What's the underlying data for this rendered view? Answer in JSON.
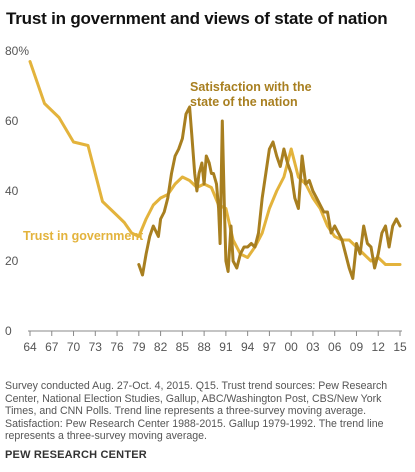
{
  "title": "Trust in government  and views of state of nation",
  "notes": [
    "Survey conducted Aug. 27-Oct. 4, 2015. Q15. Trust trend sources: Pew Research Center, National Election Studies, Gallup, ABC/Washington Post, CBS/New York Times, and CNN Polls. Trend line represents a three-survey moving average.",
    "Satisfaction: Pew Research Center 1988-2015. Gallup 1979-1992. The trend line represents a three-survey moving average."
  ],
  "source": "PEW RESEARCH CENTER",
  "colors": {
    "trust": "#E3B33C",
    "satisfaction": "#A87F20",
    "axis": "#888888"
  },
  "chart_data": {
    "type": "line",
    "title": "Trust in government  and views of state of nation",
    "xlim": [
      1964,
      2015
    ],
    "ylim": [
      0,
      80
    ],
    "x_ticks": [
      1964,
      1967,
      1970,
      1973,
      1976,
      1979,
      1982,
      1985,
      1988,
      1991,
      1994,
      1997,
      2000,
      2003,
      2006,
      2009,
      2012,
      2015
    ],
    "x_tick_labels": [
      "64",
      "67",
      "70",
      "73",
      "76",
      "79",
      "82",
      "85",
      "88",
      "91",
      "94",
      "97",
      "00",
      "03",
      "06",
      "09",
      "12",
      "15"
    ],
    "y_ticks": [
      0,
      20,
      40,
      60,
      80
    ],
    "y_tick_labels": [
      "0",
      "20",
      "40",
      "60",
      "80%"
    ],
    "grid": false,
    "series": [
      {
        "name": "Trust in government",
        "color": "#E3B33C",
        "x": [
          1964,
          1966,
          1968,
          1970,
          1972,
          1974,
          1975,
          1976,
          1977,
          1978,
          1979,
          1980,
          1981,
          1982,
          1983,
          1984,
          1985,
          1986,
          1987,
          1988,
          1989,
          1990,
          1991,
          1992,
          1993,
          1994,
          1995,
          1996,
          1997,
          1998,
          1999,
          2000,
          2001,
          2002,
          2003,
          2004,
          2005,
          2006,
          2007,
          2008,
          2009,
          2010,
          2011,
          2012,
          2013,
          2014,
          2015
        ],
        "y": [
          77,
          65,
          61,
          54,
          53,
          37,
          35,
          33,
          31,
          28,
          27,
          32,
          36,
          38,
          39,
          42,
          44,
          43,
          41,
          42,
          41,
          36,
          35,
          26,
          22,
          21,
          24,
          28,
          35,
          40,
          44,
          52,
          44,
          42,
          38,
          35,
          30,
          27,
          26,
          26,
          24,
          22,
          20,
          21,
          19,
          19,
          19
        ]
      },
      {
        "name": "Satisfaction with the state of the nation",
        "color": "#A87F20",
        "x": [
          1979,
          1979.5,
          1980,
          1980.5,
          1981,
          1981.7,
          1982,
          1982.5,
          1983,
          1983.5,
          1984,
          1984.5,
          1985,
          1985.5,
          1986,
          1986.3,
          1986.7,
          1987,
          1987.3,
          1987.7,
          1988,
          1988.3,
          1988.7,
          1989,
          1989.3,
          1989.7,
          1990,
          1990.2,
          1990.5,
          1990.8,
          1991,
          1991.3,
          1991.7,
          1992,
          1992.5,
          1993,
          1993.5,
          1994,
          1994.5,
          1995,
          1995.5,
          1996,
          1996.5,
          1997,
          1997.5,
          1998,
          1998.5,
          1999,
          1999.5,
          2000,
          2000.5,
          2001,
          2001.5,
          2002,
          2002.5,
          2003,
          2003.5,
          2004,
          2004.5,
          2005,
          2005.5,
          2006,
          2006.5,
          2007,
          2007.5,
          2008,
          2008.5,
          2009,
          2009.5,
          2010,
          2010.5,
          2011,
          2011.5,
          2012,
          2012.5,
          2013,
          2013.5,
          2014,
          2014.5,
          2015
        ],
        "y": [
          19,
          16,
          22,
          27,
          30,
          27,
          32,
          34,
          38,
          45,
          50,
          52,
          55,
          62,
          64,
          56,
          45,
          40,
          45,
          48,
          42,
          50,
          48,
          45,
          45,
          42,
          35,
          25,
          60,
          35,
          20,
          17,
          30,
          20,
          18,
          22,
          24,
          24,
          25,
          24,
          28,
          38,
          45,
          52,
          54,
          50,
          47,
          52,
          48,
          45,
          38,
          35,
          50,
          42,
          43,
          40,
          38,
          36,
          34,
          34,
          28,
          30,
          28,
          26,
          22,
          18,
          15,
          25,
          22,
          30,
          25,
          24,
          18,
          22,
          28,
          30,
          24,
          30,
          32,
          30
        ]
      }
    ],
    "annotations": [
      {
        "text": "Satisfaction with the",
        "series": "Satisfaction with the state of the nation"
      },
      {
        "text": "state of the nation",
        "series": "Satisfaction with the state of the nation"
      },
      {
        "text": "Trust in government",
        "series": "Trust in government"
      }
    ]
  }
}
